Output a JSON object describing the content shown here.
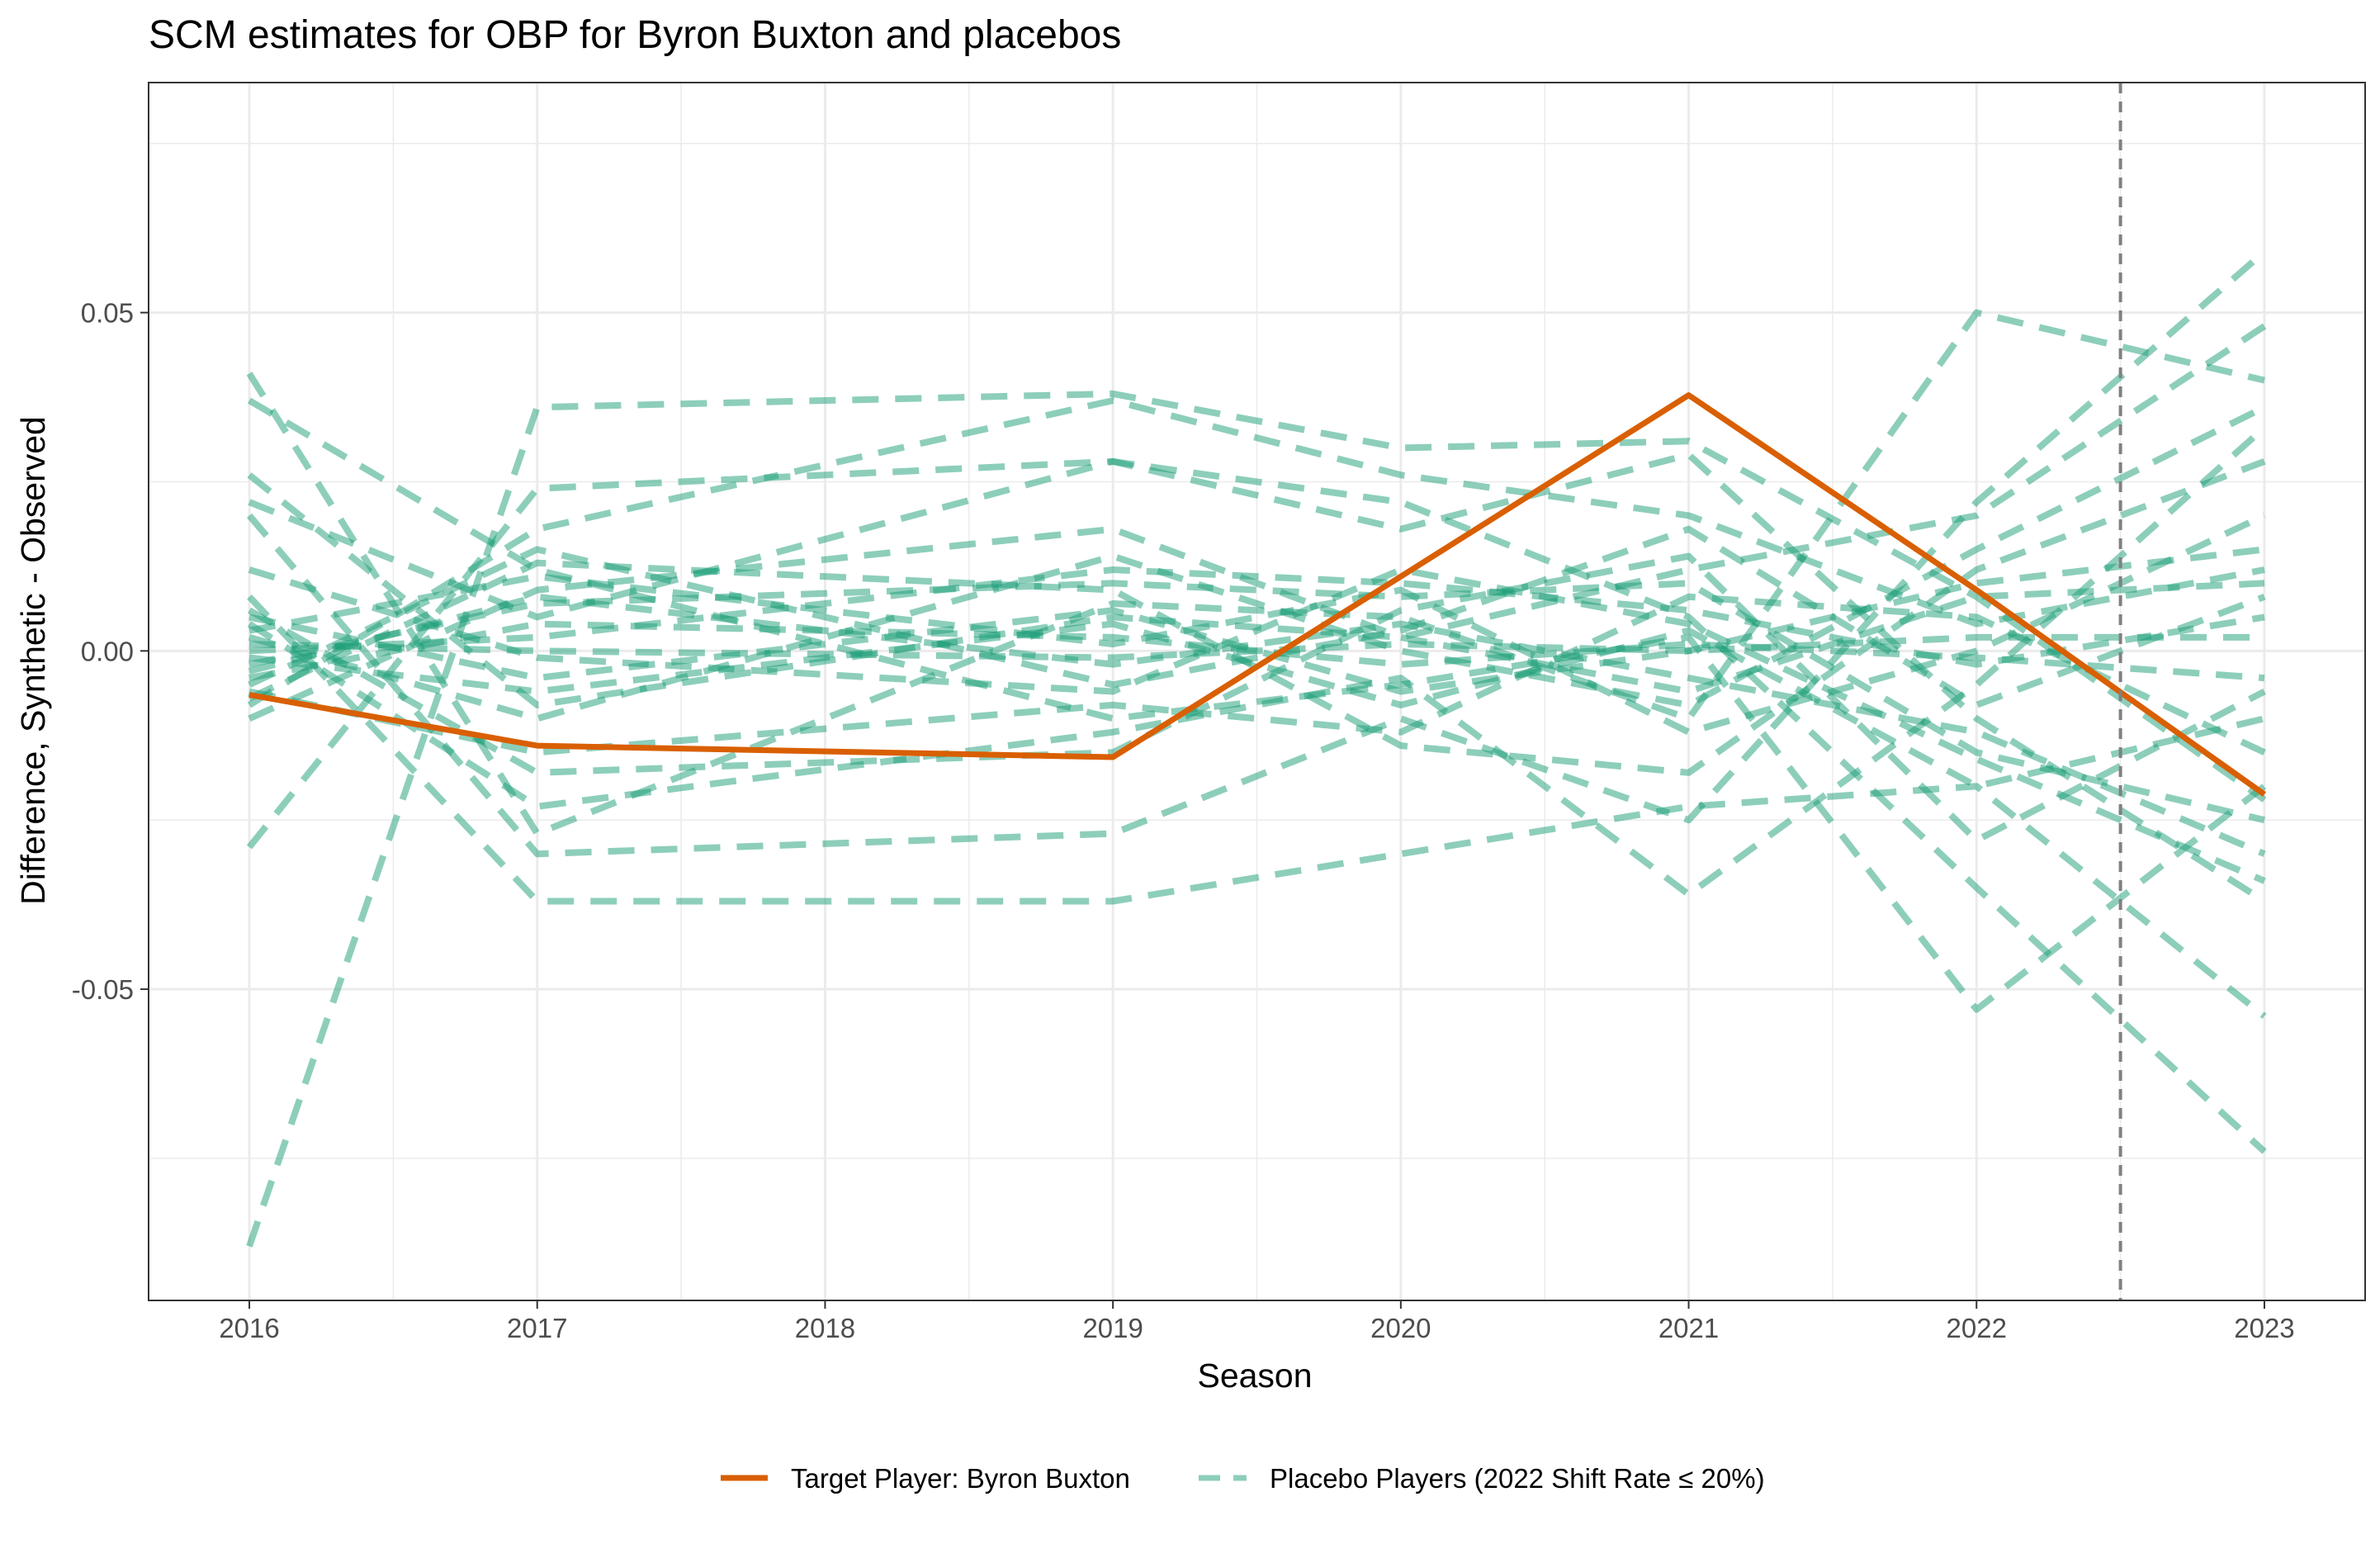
{
  "chart_data": {
    "type": "line",
    "title": "SCM estimates for OBP for Byron Buxton and placebos",
    "xlabel": "Season",
    "ylabel": "Difference, Synthetic - Observed",
    "x": [
      2016,
      2017,
      2018,
      2019,
      2020,
      2021,
      2022,
      2023
    ],
    "xlim": [
      2015.65,
      2023.35
    ],
    "ylim": [
      -0.096,
      0.084
    ],
    "y_ticks": [
      -0.05,
      0.0,
      0.05
    ],
    "y_tick_labels": [
      "-0.05",
      "0.00",
      "0.05"
    ],
    "x_tick_labels": [
      "2016",
      "2017",
      "2018",
      "2019",
      "2020",
      "2021",
      "2022",
      "2023"
    ],
    "treatment_line_x": 2022.5,
    "grid": true,
    "legend_position": "bottom",
    "colors": {
      "target": "#D95F02",
      "placebo": "#1B9E77",
      "treatment_line": "#808080"
    },
    "target_series": {
      "name": "Target Player: Byron Buxton",
      "points": [
        [
          2016,
          -0.0065
        ],
        [
          2017,
          -0.014
        ],
        [
          2019,
          -0.0157
        ],
        [
          2020,
          0.011
        ],
        [
          2021,
          0.0378
        ],
        [
          2022,
          0.009
        ],
        [
          2023,
          -0.0212
        ]
      ]
    },
    "placebo_legend_label": "Placebo Players (2022 Shift Rate ≤ 20%)",
    "placebo_series": [
      {
        "points": [
          [
            2016,
            -0.088
          ],
          [
            2017,
            0.036
          ],
          [
            2019,
            0.038
          ],
          [
            2020,
            0.03
          ],
          [
            2021,
            0.031
          ],
          [
            2022,
            0.008
          ],
          [
            2023,
            -0.022
          ]
        ]
      },
      {
        "points": [
          [
            2016,
            0.041
          ],
          [
            2017,
            -0.027
          ],
          [
            2019,
            0.007
          ],
          [
            2020,
            0.005
          ],
          [
            2021,
            -0.01
          ],
          [
            2022,
            0.05
          ],
          [
            2023,
            0.04
          ]
        ]
      },
      {
        "points": [
          [
            2016,
            0.037
          ],
          [
            2017,
            0.012
          ],
          [
            2019,
            -0.01
          ],
          [
            2020,
            -0.005
          ],
          [
            2021,
            0.002
          ],
          [
            2022,
            -0.053
          ],
          [
            2023,
            -0.02
          ]
        ]
      },
      {
        "points": [
          [
            2016,
            0.026
          ],
          [
            2017,
            -0.008
          ],
          [
            2019,
            0.005
          ],
          [
            2020,
            0.002
          ],
          [
            2021,
            0.012
          ],
          [
            2022,
            0.02
          ],
          [
            2023,
            0.048
          ]
        ]
      },
      {
        "points": [
          [
            2016,
            0.022
          ],
          [
            2017,
            0.005
          ],
          [
            2019,
            0.028
          ],
          [
            2020,
            0.022
          ],
          [
            2021,
            0.005
          ],
          [
            2022,
            -0.035
          ],
          [
            2023,
            -0.074
          ]
        ]
      },
      {
        "points": [
          [
            2016,
            0.02
          ],
          [
            2017,
            -0.03
          ],
          [
            2019,
            -0.027
          ],
          [
            2020,
            -0.01
          ],
          [
            2021,
            -0.025
          ],
          [
            2022,
            0.022
          ],
          [
            2023,
            0.059
          ]
        ]
      },
      {
        "points": [
          [
            2016,
            -0.029
          ],
          [
            2017,
            0.024
          ],
          [
            2019,
            0.028
          ],
          [
            2020,
            0.018
          ],
          [
            2021,
            0.029
          ],
          [
            2022,
            -0.01
          ],
          [
            2023,
            -0.037
          ]
        ]
      },
      {
        "points": [
          [
            2016,
            0.008
          ],
          [
            2017,
            -0.037
          ],
          [
            2019,
            -0.037
          ],
          [
            2020,
            -0.03
          ],
          [
            2021,
            -0.023
          ],
          [
            2022,
            -0.02
          ],
          [
            2023,
            -0.054
          ]
        ]
      },
      {
        "points": [
          [
            2016,
            0.004
          ],
          [
            2017,
            -0.023
          ],
          [
            2019,
            -0.012
          ],
          [
            2020,
            -0.004
          ],
          [
            2021,
            -0.036
          ],
          [
            2022,
            -0.005
          ],
          [
            2023,
            0.033
          ]
        ]
      },
      {
        "points": [
          [
            2016,
            -0.008
          ],
          [
            2017,
            0.018
          ],
          [
            2019,
            0.037
          ],
          [
            2020,
            0.026
          ],
          [
            2021,
            0.02
          ],
          [
            2022,
            0.004
          ],
          [
            2023,
            0.012
          ]
        ]
      },
      {
        "points": [
          [
            2016,
            -0.002
          ],
          [
            2017,
            0.007
          ],
          [
            2019,
            0.01
          ],
          [
            2020,
            0.008
          ],
          [
            2021,
            0.01
          ],
          [
            2022,
            -0.015
          ],
          [
            2023,
            -0.025
          ]
        ]
      },
      {
        "points": [
          [
            2016,
            0.002
          ],
          [
            2017,
            -0.01
          ],
          [
            2019,
            0.014
          ],
          [
            2020,
            0.0
          ],
          [
            2021,
            -0.008
          ],
          [
            2022,
            0.015
          ],
          [
            2023,
            0.036
          ]
        ]
      },
      {
        "points": [
          [
            2016,
            -0.005
          ],
          [
            2017,
            0.015
          ],
          [
            2019,
            -0.005
          ],
          [
            2020,
            0.003
          ],
          [
            2021,
            0.018
          ],
          [
            2022,
            -0.008
          ],
          [
            2023,
            0.008
          ]
        ]
      },
      {
        "points": [
          [
            2016,
            0.005
          ],
          [
            2017,
            -0.004
          ],
          [
            2019,
            0.006
          ],
          [
            2020,
            -0.006
          ],
          [
            2021,
            0.0
          ],
          [
            2022,
            0.01
          ],
          [
            2023,
            0.015
          ]
        ]
      },
      {
        "points": [
          [
            2016,
            -0.003
          ],
          [
            2017,
            0.008
          ],
          [
            2019,
            -0.002
          ],
          [
            2020,
            0.004
          ],
          [
            2021,
            -0.004
          ],
          [
            2022,
            -0.012
          ],
          [
            2023,
            -0.03
          ]
        ]
      },
      {
        "points": [
          [
            2016,
            0.0
          ],
          [
            2017,
            0.002
          ],
          [
            2019,
            0.012
          ],
          [
            2020,
            0.01
          ],
          [
            2021,
            0.006
          ],
          [
            2022,
            -0.002
          ],
          [
            2023,
            0.005
          ]
        ]
      },
      {
        "points": [
          [
            2016,
            -0.006
          ],
          [
            2017,
            -0.015
          ],
          [
            2019,
            -0.008
          ],
          [
            2020,
            -0.012
          ],
          [
            2021,
            0.008
          ],
          [
            2022,
            0.005
          ],
          [
            2023,
            -0.015
          ]
        ]
      },
      {
        "points": [
          [
            2016,
            0.003
          ],
          [
            2017,
            0.011
          ],
          [
            2019,
            0.001
          ],
          [
            2020,
            0.009
          ],
          [
            2021,
            -0.012
          ],
          [
            2022,
            0.0
          ],
          [
            2023,
            0.02
          ]
        ]
      },
      {
        "points": [
          [
            2016,
            -0.001
          ],
          [
            2017,
            -0.006
          ],
          [
            2019,
            0.004
          ],
          [
            2020,
            -0.008
          ],
          [
            2021,
            0.003
          ],
          [
            2022,
            -0.02
          ],
          [
            2023,
            -0.01
          ]
        ]
      },
      {
        "points": [
          [
            2016,
            0.001
          ],
          [
            2017,
            0.0
          ],
          [
            2019,
            -0.001
          ],
          [
            2020,
            0.001
          ],
          [
            2021,
            0.0
          ],
          [
            2022,
            0.002
          ],
          [
            2023,
            0.002
          ]
        ]
      },
      {
        "points": [
          [
            2016,
            -0.004
          ],
          [
            2017,
            0.004
          ],
          [
            2019,
            0.002
          ],
          [
            2020,
            -0.002
          ],
          [
            2021,
            0.001
          ],
          [
            2022,
            -0.001
          ],
          [
            2023,
            -0.004
          ]
        ]
      },
      {
        "points": [
          [
            2016,
            0.006
          ],
          [
            2017,
            -0.018
          ],
          [
            2019,
            -0.015
          ],
          [
            2020,
            0.006
          ],
          [
            2021,
            0.014
          ],
          [
            2022,
            -0.028
          ],
          [
            2023,
            -0.006
          ]
        ]
      },
      {
        "points": [
          [
            2016,
            -0.007
          ],
          [
            2017,
            0.013
          ],
          [
            2019,
            0.009
          ],
          [
            2020,
            -0.014
          ],
          [
            2021,
            -0.018
          ],
          [
            2022,
            0.012
          ],
          [
            2023,
            0.028
          ]
        ]
      },
      {
        "points": [
          [
            2016,
            0.012
          ],
          [
            2017,
            -0.001
          ],
          [
            2019,
            -0.006
          ],
          [
            2020,
            0.012
          ],
          [
            2021,
            0.004
          ],
          [
            2022,
            -0.016
          ],
          [
            2023,
            -0.034
          ]
        ]
      },
      {
        "points": [
          [
            2016,
            -0.01
          ],
          [
            2017,
            0.009
          ],
          [
            2019,
            0.018
          ],
          [
            2020,
            0.002
          ],
          [
            2021,
            -0.006
          ],
          [
            2022,
            0.008
          ],
          [
            2023,
            0.01
          ]
        ]
      }
    ]
  }
}
